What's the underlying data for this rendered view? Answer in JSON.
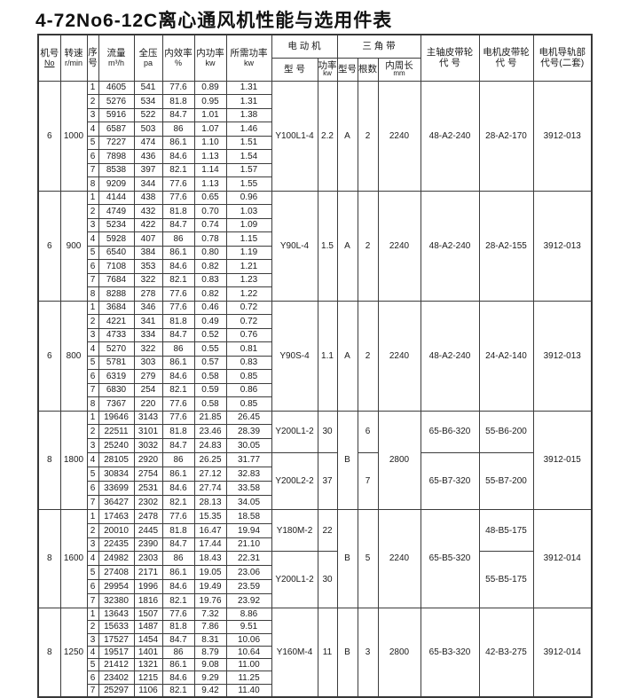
{
  "title": "4-72No6-12C离心通风机性能与选用件表",
  "table": {
    "header": {
      "machine_no": {
        "line1": "机号",
        "line2": "No"
      },
      "speed": {
        "line1": "转速",
        "line2": "r/min"
      },
      "seq": {
        "line1": "序",
        "line2": "号"
      },
      "flow": {
        "line1": "流量",
        "line2": "m³/h"
      },
      "pressure": {
        "line1": "全压",
        "line2": "pa"
      },
      "efficiency": {
        "line1": "内效率",
        "line2": "%"
      },
      "power": {
        "line1": "内功率",
        "line2": "kw"
      },
      "required_power": {
        "line1": "所需功率",
        "line2": "kw"
      },
      "motor_group": "电 动 机",
      "motor_model": "型 号",
      "motor_power": {
        "line1": "功率",
        "line2": "kw"
      },
      "belt_group": "三 角 带",
      "belt_model": "型号",
      "belt_count": "根数",
      "belt_length": {
        "line1": "内周长",
        "line2": "mm"
      },
      "main_pulley": {
        "line1": "主轴皮带轮",
        "line2": "代 号"
      },
      "motor_pulley": {
        "line1": "电机皮带轮",
        "line2": "代 号"
      },
      "rail": {
        "line1": "电机导轨部",
        "line2": "代号(二套)"
      }
    },
    "blocks": [
      {
        "machine_no": "6",
        "speed": "1000",
        "rows": [
          [
            "1",
            "4605",
            "541",
            "77.6",
            "0.89",
            "1.31"
          ],
          [
            "2",
            "5276",
            "534",
            "81.8",
            "0.95",
            "1.31"
          ],
          [
            "3",
            "5916",
            "522",
            "84.7",
            "1.01",
            "1.38"
          ],
          [
            "4",
            "6587",
            "503",
            "86",
            "1.07",
            "1.46"
          ],
          [
            "5",
            "7227",
            "474",
            "86.1",
            "1.10",
            "1.51"
          ],
          [
            "6",
            "7898",
            "436",
            "84.6",
            "1.13",
            "1.54"
          ],
          [
            "7",
            "8538",
            "397",
            "82.1",
            "1.14",
            "1.57"
          ],
          [
            "8",
            "9209",
            "344",
            "77.6",
            "1.13",
            "1.55"
          ]
        ],
        "right": {
          "motor_model": [
            {
              "span": 8,
              "v": "Y100L1-4"
            }
          ],
          "motor_power": [
            {
              "span": 8,
              "v": "2.2"
            }
          ],
          "belt_model": [
            {
              "span": 8,
              "v": "A"
            }
          ],
          "belt_count": [
            {
              "span": 8,
              "v": "2"
            }
          ],
          "belt_length": [
            {
              "span": 8,
              "v": "2240"
            }
          ],
          "main_pulley": [
            {
              "span": 8,
              "v": "48-A2-240"
            }
          ],
          "motor_pulley": [
            {
              "span": 8,
              "v": "28-A2-170"
            }
          ],
          "rail": [
            {
              "span": 8,
              "v": "3912-013"
            }
          ]
        }
      },
      {
        "machine_no": "6",
        "speed": "900",
        "rows": [
          [
            "1",
            "4144",
            "438",
            "77.6",
            "0.65",
            "0.96"
          ],
          [
            "2",
            "4749",
            "432",
            "81.8",
            "0.70",
            "1.03"
          ],
          [
            "3",
            "5234",
            "422",
            "84.7",
            "0.74",
            "1.09"
          ],
          [
            "4",
            "5928",
            "407",
            "86",
            "0.78",
            "1.15"
          ],
          [
            "5",
            "6540",
            "384",
            "86.1",
            "0.80",
            "1.19"
          ],
          [
            "6",
            "7108",
            "353",
            "84.6",
            "0.82",
            "1.21"
          ],
          [
            "7",
            "7684",
            "322",
            "82.1",
            "0.83",
            "1.23"
          ],
          [
            "8",
            "8288",
            "278",
            "77.6",
            "0.82",
            "1.22"
          ]
        ],
        "right": {
          "motor_model": [
            {
              "span": 8,
              "v": "Y90L-4"
            }
          ],
          "motor_power": [
            {
              "span": 8,
              "v": "1.5"
            }
          ],
          "belt_model": [
            {
              "span": 8,
              "v": "A"
            }
          ],
          "belt_count": [
            {
              "span": 8,
              "v": "2"
            }
          ],
          "belt_length": [
            {
              "span": 8,
              "v": "2240"
            }
          ],
          "main_pulley": [
            {
              "span": 8,
              "v": "48-A2-240"
            }
          ],
          "motor_pulley": [
            {
              "span": 8,
              "v": "28-A2-155"
            }
          ],
          "rail": [
            {
              "span": 8,
              "v": "3912-013"
            }
          ]
        }
      },
      {
        "machine_no": "6",
        "speed": "800",
        "rows": [
          [
            "1",
            "3684",
            "346",
            "77.6",
            "0.46",
            "0.72"
          ],
          [
            "2",
            "4221",
            "341",
            "81.8",
            "0.49",
            "0.72"
          ],
          [
            "3",
            "4733",
            "334",
            "84.7",
            "0.52",
            "0.76"
          ],
          [
            "4",
            "5270",
            "322",
            "86",
            "0.55",
            "0.81"
          ],
          [
            "5",
            "5781",
            "303",
            "86.1",
            "0.57",
            "0.83"
          ],
          [
            "6",
            "6319",
            "279",
            "84.6",
            "0.58",
            "0.85"
          ],
          [
            "7",
            "6830",
            "254",
            "82.1",
            "0.59",
            "0.86"
          ],
          [
            "8",
            "7367",
            "220",
            "77.6",
            "0.58",
            "0.85"
          ]
        ],
        "right": {
          "motor_model": [
            {
              "span": 8,
              "v": "Y90S-4"
            }
          ],
          "motor_power": [
            {
              "span": 8,
              "v": "1.1"
            }
          ],
          "belt_model": [
            {
              "span": 8,
              "v": "A"
            }
          ],
          "belt_count": [
            {
              "span": 8,
              "v": "2"
            }
          ],
          "belt_length": [
            {
              "span": 8,
              "v": "2240"
            }
          ],
          "main_pulley": [
            {
              "span": 8,
              "v": "48-A2-240"
            }
          ],
          "motor_pulley": [
            {
              "span": 8,
              "v": "24-A2-140"
            }
          ],
          "rail": [
            {
              "span": 8,
              "v": "3912-013"
            }
          ]
        }
      },
      {
        "machine_no": "8",
        "speed": "1800",
        "rows": [
          [
            "1",
            "19646",
            "3143",
            "77.6",
            "21.85",
            "26.45"
          ],
          [
            "2",
            "22511",
            "3101",
            "81.8",
            "23.46",
            "28.39"
          ],
          [
            "3",
            "25240",
            "3032",
            "84.7",
            "24.83",
            "30.05"
          ],
          [
            "4",
            "28105",
            "2920",
            "86",
            "26.25",
            "31.77"
          ],
          [
            "5",
            "30834",
            "2754",
            "86.1",
            "27.12",
            "32.83"
          ],
          [
            "6",
            "33699",
            "2531",
            "84.6",
            "27.74",
            "33.58"
          ],
          [
            "7",
            "36427",
            "2302",
            "82.1",
            "28.13",
            "34.05"
          ]
        ],
        "right": {
          "motor_model": [
            {
              "span": 3,
              "v": "Y200L1-2"
            },
            {
              "span": 4,
              "v": "Y200L2-2"
            }
          ],
          "motor_power": [
            {
              "span": 3,
              "v": "30"
            },
            {
              "span": 4,
              "v": "37"
            }
          ],
          "belt_model": [
            {
              "span": 7,
              "v": "B"
            }
          ],
          "belt_count": [
            {
              "span": 3,
              "v": "6"
            },
            {
              "span": 4,
              "v": "7"
            }
          ],
          "belt_length": [
            {
              "span": 7,
              "v": "2800"
            }
          ],
          "main_pulley": [
            {
              "span": 3,
              "v": "65-B6-320"
            },
            {
              "span": 4,
              "v": "65-B7-320"
            }
          ],
          "motor_pulley": [
            {
              "span": 3,
              "v": "55-B6-200"
            },
            {
              "span": 4,
              "v": "55-B7-200"
            }
          ],
          "rail": [
            {
              "span": 7,
              "v": "3912-015"
            }
          ]
        }
      },
      {
        "machine_no": "8",
        "speed": "1600",
        "rows": [
          [
            "1",
            "17463",
            "2478",
            "77.6",
            "15.35",
            "18.58"
          ],
          [
            "2",
            "20010",
            "2445",
            "81.8",
            "16.47",
            "19.94"
          ],
          [
            "3",
            "22435",
            "2390",
            "84.7",
            "17.44",
            "21.10"
          ],
          [
            "4",
            "24982",
            "2303",
            "86",
            "18.43",
            "22.31"
          ],
          [
            "5",
            "27408",
            "2171",
            "86.1",
            "19.05",
            "23.06"
          ],
          [
            "6",
            "29954",
            "1996",
            "84.6",
            "19.49",
            "23.59"
          ],
          [
            "7",
            "32380",
            "1816",
            "82.1",
            "19.76",
            "23.92"
          ]
        ],
        "right": {
          "motor_model": [
            {
              "span": 3,
              "v": "Y180M-2"
            },
            {
              "span": 4,
              "v": "Y200L1-2"
            }
          ],
          "motor_power": [
            {
              "span": 3,
              "v": "22"
            },
            {
              "span": 4,
              "v": "30"
            }
          ],
          "belt_model": [
            {
              "span": 7,
              "v": "B"
            }
          ],
          "belt_count": [
            {
              "span": 7,
              "v": "5"
            }
          ],
          "belt_length": [
            {
              "span": 7,
              "v": "2240"
            }
          ],
          "main_pulley": [
            {
              "span": 7,
              "v": "65-B5-320"
            }
          ],
          "motor_pulley": [
            {
              "span": 3,
              "v": "48-B5-175"
            },
            {
              "span": 4,
              "v": "55-B5-175"
            }
          ],
          "rail": [
            {
              "span": 7,
              "v": "3912-014"
            }
          ]
        }
      },
      {
        "machine_no": "8",
        "speed": "1250",
        "rows": [
          [
            "1",
            "13643",
            "1507",
            "77.6",
            "7.32",
            "8.86"
          ],
          [
            "2",
            "15633",
            "1487",
            "81.8",
            "7.86",
            "9.51"
          ],
          [
            "3",
            "17527",
            "1454",
            "84.7",
            "8.31",
            "10.06"
          ],
          [
            "4",
            "19517",
            "1401",
            "86",
            "8.79",
            "10.64"
          ],
          [
            "5",
            "21412",
            "1321",
            "86.1",
            "9.08",
            "11.00"
          ],
          [
            "6",
            "23402",
            "1215",
            "84.6",
            "9.29",
            "11.25"
          ],
          [
            "7",
            "25297",
            "1106",
            "82.1",
            "9.42",
            "11.40"
          ]
        ],
        "right": {
          "motor_model": [
            {
              "span": 7,
              "v": "Y160M-4"
            }
          ],
          "motor_power": [
            {
              "span": 7,
              "v": "11"
            }
          ],
          "belt_model": [
            {
              "span": 7,
              "v": "B"
            }
          ],
          "belt_count": [
            {
              "span": 7,
              "v": "3"
            }
          ],
          "belt_length": [
            {
              "span": 7,
              "v": "2800"
            }
          ],
          "main_pulley": [
            {
              "span": 7,
              "v": "65-B3-320"
            }
          ],
          "motor_pulley": [
            {
              "span": 7,
              "v": "42-B3-275"
            }
          ],
          "rail": [
            {
              "span": 7,
              "v": "3912-014"
            }
          ]
        }
      }
    ]
  }
}
